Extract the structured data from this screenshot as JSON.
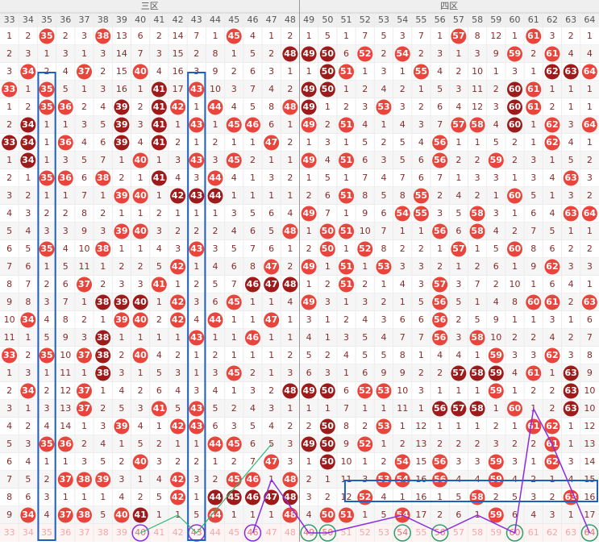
{
  "header": {
    "zones": [
      "三区",
      "四区"
    ],
    "columns": [
      33,
      34,
      35,
      36,
      37,
      38,
      39,
      40,
      41,
      42,
      43,
      44,
      45,
      46,
      47,
      48,
      49,
      50,
      51,
      52,
      53,
      54,
      55,
      56,
      57,
      58,
      59,
      60,
      61,
      62,
      63,
      64
    ]
  },
  "rows": [
    [
      1,
      2,
      {
        "v": 35,
        "c": "r"
      },
      2,
      3,
      {
        "v": 38,
        "c": "r"
      },
      13,
      6,
      2,
      14,
      7,
      1,
      {
        "v": 45,
        "c": "r"
      },
      4,
      1,
      2,
      1,
      5,
      1,
      7,
      5,
      3,
      7,
      1,
      {
        "v": 57,
        "c": "r"
      },
      8,
      12,
      1,
      {
        "v": 61,
        "c": "r"
      },
      3,
      2,
      1
    ],
    [
      2,
      3,
      1,
      3,
      1,
      3,
      14,
      7,
      3,
      15,
      2,
      8,
      1,
      5,
      2,
      {
        "v": 48,
        "c": "d"
      },
      {
        "v": 49,
        "c": "d"
      },
      {
        "v": 50,
        "c": "d"
      },
      6,
      {
        "v": 52,
        "c": "r"
      },
      2,
      {
        "v": 54,
        "c": "r"
      },
      2,
      3,
      1,
      3,
      9,
      {
        "v": 59,
        "c": "r"
      },
      2,
      {
        "v": 61,
        "c": "r"
      },
      4,
      4
    ],
    [
      3,
      {
        "v": 34,
        "c": "r"
      },
      2,
      4,
      {
        "v": 37,
        "c": "r"
      },
      2,
      15,
      {
        "v": 40,
        "c": "r"
      },
      4,
      16,
      3,
      9,
      2,
      6,
      3,
      1,
      1,
      {
        "v": 50,
        "c": "d"
      },
      {
        "v": 51,
        "c": "r"
      },
      1,
      3,
      1,
      {
        "v": 55,
        "c": "r"
      },
      4,
      2,
      10,
      1,
      3,
      1,
      {
        "v": 62,
        "c": "d"
      },
      {
        "v": 63,
        "c": "d"
      },
      {
        "v": 64,
        "c": "r"
      }
    ],
    [
      {
        "v": 33,
        "c": "r"
      },
      1,
      {
        "v": 35,
        "c": "r"
      },
      5,
      1,
      3,
      16,
      1,
      {
        "v": 41,
        "c": "d"
      },
      17,
      {
        "v": 43,
        "c": "r"
      },
      10,
      3,
      7,
      4,
      2,
      {
        "v": 49,
        "c": "d"
      },
      {
        "v": 50,
        "c": "d"
      },
      1,
      2,
      4,
      2,
      1,
      5,
      3,
      11,
      2,
      {
        "v": 60,
        "c": "d"
      },
      {
        "v": 61,
        "c": "r"
      },
      1,
      1,
      1
    ],
    [
      1,
      2,
      {
        "v": 35,
        "c": "r"
      },
      {
        "v": 36,
        "c": "r"
      },
      2,
      4,
      {
        "v": 39,
        "c": "d"
      },
      2,
      {
        "v": 41,
        "c": "d"
      },
      {
        "v": 42,
        "c": "r"
      },
      1,
      {
        "v": 44,
        "c": "r"
      },
      4,
      5,
      8,
      {
        "v": 48,
        "c": "r"
      },
      {
        "v": 49,
        "c": "d"
      },
      1,
      2,
      3,
      {
        "v": 53,
        "c": "r"
      },
      3,
      2,
      6,
      4,
      12,
      3,
      {
        "v": 60,
        "c": "d"
      },
      {
        "v": 61,
        "c": "r"
      },
      2,
      1,
      1
    ],
    [
      2,
      {
        "v": 34,
        "c": "d"
      },
      1,
      1,
      3,
      5,
      {
        "v": 39,
        "c": "d"
      },
      3,
      {
        "v": 41,
        "c": "d"
      },
      1,
      {
        "v": 43,
        "c": "r"
      },
      1,
      {
        "v": 45,
        "c": "r"
      },
      {
        "v": 46,
        "c": "r"
      },
      6,
      1,
      {
        "v": 49,
        "c": "r"
      },
      2,
      {
        "v": 51,
        "c": "r"
      },
      4,
      1,
      4,
      3,
      7,
      {
        "v": 57,
        "c": "r"
      },
      {
        "v": 58,
        "c": "r"
      },
      4,
      {
        "v": 60,
        "c": "d"
      },
      1,
      {
        "v": 62,
        "c": "r"
      },
      3,
      {
        "v": 64,
        "c": "r"
      }
    ],
    [
      {
        "v": 33,
        "c": "d"
      },
      {
        "v": 34,
        "c": "d"
      },
      1,
      {
        "v": 36,
        "c": "r"
      },
      4,
      6,
      {
        "v": 39,
        "c": "d"
      },
      4,
      {
        "v": 41,
        "c": "d"
      },
      2,
      1,
      2,
      1,
      1,
      {
        "v": 47,
        "c": "r"
      },
      2,
      1,
      3,
      1,
      5,
      2,
      5,
      4,
      {
        "v": 56,
        "c": "r"
      },
      1,
      1,
      5,
      2,
      1,
      {
        "v": 62,
        "c": "r"
      },
      4,
      1
    ],
    [
      1,
      {
        "v": 34,
        "c": "d"
      },
      1,
      3,
      5,
      7,
      1,
      {
        "v": 40,
        "c": "r"
      },
      1,
      3,
      {
        "v": 43,
        "c": "r"
      },
      3,
      {
        "v": 45,
        "c": "r"
      },
      2,
      1,
      1,
      {
        "v": 49,
        "c": "r"
      },
      4,
      {
        "v": 51,
        "c": "r"
      },
      6,
      3,
      5,
      6,
      {
        "v": 56,
        "c": "r"
      },
      2,
      2,
      {
        "v": 59,
        "c": "r"
      },
      2,
      3,
      1,
      5,
      2
    ],
    [
      2,
      1,
      {
        "v": 35,
        "c": "r"
      },
      {
        "v": 36,
        "c": "r"
      },
      6,
      {
        "v": 38,
        "c": "r"
      },
      2,
      1,
      {
        "v": 41,
        "c": "d"
      },
      4,
      3,
      {
        "v": 44,
        "c": "r"
      },
      4,
      1,
      3,
      2,
      1,
      5,
      1,
      7,
      4,
      7,
      6,
      7,
      1,
      3,
      3,
      1,
      3,
      4,
      {
        "v": 63,
        "c": "r"
      },
      3
    ],
    [
      3,
      2,
      1,
      1,
      7,
      1,
      {
        "v": 39,
        "c": "r"
      },
      {
        "v": 40,
        "c": "r"
      },
      1,
      {
        "v": 42,
        "c": "d"
      },
      {
        "v": 43,
        "c": "d"
      },
      {
        "v": 44,
        "c": "d"
      },
      1,
      1,
      1,
      1,
      2,
      6,
      {
        "v": 51,
        "c": "r"
      },
      8,
      5,
      8,
      {
        "v": 55,
        "c": "r"
      },
      2,
      4,
      2,
      1,
      {
        "v": 60,
        "c": "r"
      },
      5,
      1,
      3,
      2
    ],
    [
      4,
      3,
      2,
      2,
      8,
      2,
      1,
      1,
      2,
      1,
      1,
      1,
      3,
      5,
      6,
      4,
      {
        "v": 49,
        "c": "r"
      },
      7,
      1,
      9,
      6,
      {
        "v": 54,
        "c": "r"
      },
      {
        "v": 55,
        "c": "r"
      },
      3,
      5,
      {
        "v": 58,
        "c": "r"
      },
      3,
      1,
      6,
      4,
      {
        "v": 63,
        "c": "r"
      },
      {
        "v": 64,
        "c": "r"
      }
    ],
    [
      5,
      4,
      3,
      3,
      9,
      3,
      {
        "v": 39,
        "c": "r"
      },
      {
        "v": 40,
        "c": "r"
      },
      3,
      2,
      2,
      2,
      4,
      6,
      5,
      {
        "v": 48,
        "c": "r"
      },
      1,
      {
        "v": 50,
        "c": "r"
      },
      {
        "v": 51,
        "c": "r"
      },
      10,
      7,
      1,
      1,
      {
        "v": 56,
        "c": "r"
      },
      6,
      {
        "v": 58,
        "c": "r"
      },
      4,
      2,
      7,
      5,
      1,
      1
    ],
    [
      6,
      5,
      {
        "v": 35,
        "c": "r"
      },
      4,
      10,
      {
        "v": 38,
        "c": "r"
      },
      1,
      1,
      4,
      3,
      {
        "v": 43,
        "c": "r"
      },
      3,
      5,
      7,
      6,
      1,
      2,
      {
        "v": 50,
        "c": "r"
      },
      1,
      {
        "v": 52,
        "c": "r"
      },
      8,
      2,
      2,
      1,
      {
        "v": 57,
        "c": "r"
      },
      1,
      5,
      {
        "v": 60,
        "c": "r"
      },
      8,
      6,
      2,
      2
    ],
    [
      7,
      6,
      1,
      5,
      11,
      1,
      2,
      2,
      5,
      {
        "v": 42,
        "c": "r"
      },
      1,
      4,
      6,
      8,
      {
        "v": 47,
        "c": "r"
      },
      2,
      {
        "v": 49,
        "c": "r"
      },
      1,
      {
        "v": 51,
        "c": "r"
      },
      1,
      {
        "v": 53,
        "c": "r"
      },
      3,
      3,
      2,
      1,
      2,
      6,
      1,
      9,
      {
        "v": 62,
        "c": "r"
      },
      3,
      3
    ],
    [
      8,
      7,
      2,
      6,
      {
        "v": 37,
        "c": "r"
      },
      2,
      3,
      3,
      {
        "v": 41,
        "c": "r"
      },
      1,
      2,
      5,
      7,
      {
        "v": 46,
        "c": "d"
      },
      {
        "v": 47,
        "c": "d"
      },
      {
        "v": 48,
        "c": "d"
      },
      1,
      2,
      {
        "v": 51,
        "c": "r"
      },
      2,
      1,
      4,
      3,
      {
        "v": 57,
        "c": "r"
      },
      3,
      7,
      2,
      10,
      1,
      6,
      4,
      1
    ],
    [
      9,
      8,
      3,
      7,
      1,
      {
        "v": 38,
        "c": "d"
      },
      {
        "v": 39,
        "c": "d"
      },
      {
        "v": 40,
        "c": "d"
      },
      1,
      {
        "v": 42,
        "c": "r"
      },
      3,
      6,
      {
        "v": 45,
        "c": "r"
      },
      1,
      1,
      4,
      {
        "v": 49,
        "c": "r"
      },
      3,
      1,
      3,
      2,
      1,
      5,
      {
        "v": 56,
        "c": "r"
      },
      5,
      1,
      4,
      8,
      {
        "v": 60,
        "c": "r"
      },
      {
        "v": 61,
        "c": "r"
      },
      2,
      {
        "v": 63,
        "c": "r"
      }
    ],
    [
      10,
      {
        "v": 34,
        "c": "r"
      },
      4,
      8,
      2,
      1,
      {
        "v": 39,
        "c": "r"
      },
      {
        "v": 40,
        "c": "r"
      },
      2,
      {
        "v": 42,
        "c": "r"
      },
      4,
      {
        "v": 44,
        "c": "r"
      },
      1,
      1,
      {
        "v": 47,
        "c": "r"
      },
      1,
      3,
      1,
      2,
      4,
      3,
      6,
      6,
      {
        "v": 56,
        "c": "r"
      },
      2,
      5,
      9,
      1,
      1,
      3,
      1,
      6
    ],
    [
      11,
      1,
      5,
      9,
      3,
      {
        "v": 38,
        "c": "d"
      },
      1,
      1,
      1,
      1,
      {
        "v": 43,
        "c": "r"
      },
      1,
      1,
      {
        "v": 46,
        "c": "r"
      },
      1,
      1,
      4,
      1,
      3,
      5,
      4,
      7,
      7,
      {
        "v": 56,
        "c": "r"
      },
      3,
      {
        "v": 58,
        "c": "r"
      },
      10,
      2,
      2,
      4,
      2,
      7
    ],
    [
      {
        "v": 33,
        "c": "r"
      },
      2,
      {
        "v": 35,
        "c": "r"
      },
      10,
      {
        "v": 37,
        "c": "r"
      },
      {
        "v": 38,
        "c": "d"
      },
      2,
      {
        "v": 40,
        "c": "r"
      },
      4,
      2,
      1,
      2,
      1,
      1,
      1,
      2,
      5,
      2,
      4,
      5,
      5,
      8,
      1,
      4,
      4,
      1,
      {
        "v": 59,
        "c": "r"
      },
      3,
      3,
      {
        "v": 62,
        "c": "r"
      },
      3,
      8
    ],
    [
      1,
      3,
      1,
      11,
      1,
      {
        "v": 38,
        "c": "d"
      },
      3,
      1,
      5,
      3,
      1,
      3,
      {
        "v": 45,
        "c": "r"
      },
      2,
      1,
      3,
      6,
      3,
      1,
      6,
      9,
      9,
      2,
      2,
      {
        "v": 57,
        "c": "d"
      },
      {
        "v": 58,
        "c": "d"
      },
      {
        "v": 59,
        "c": "d"
      },
      4,
      {
        "v": 61,
        "c": "r"
      },
      1,
      {
        "v": 63,
        "c": "d"
      },
      9
    ],
    [
      2,
      {
        "v": 34,
        "c": "r"
      },
      2,
      12,
      {
        "v": 37,
        "c": "r"
      },
      1,
      4,
      2,
      6,
      4,
      3,
      4,
      1,
      3,
      2,
      {
        "v": 48,
        "c": "d"
      },
      {
        "v": 49,
        "c": "d"
      },
      {
        "v": 50,
        "c": "d"
      },
      6,
      {
        "v": 52,
        "c": "r"
      },
      {
        "v": 53,
        "c": "r"
      },
      10,
      3,
      1,
      1,
      1,
      {
        "v": 59,
        "c": "r"
      },
      1,
      2,
      2,
      {
        "v": 63,
        "c": "d"
      },
      10
    ],
    [
      3,
      1,
      3,
      13,
      {
        "v": 37,
        "c": "r"
      },
      2,
      5,
      3,
      {
        "v": 41,
        "c": "r"
      },
      5,
      {
        "v": 43,
        "c": "r"
      },
      5,
      2,
      4,
      3,
      1,
      1,
      1,
      7,
      1,
      1,
      11,
      1,
      {
        "v": 56,
        "c": "d"
      },
      {
        "v": 57,
        "c": "d"
      },
      {
        "v": 58,
        "c": "d"
      },
      1,
      {
        "v": 60,
        "c": "r"
      },
      1,
      2,
      {
        "v": 63,
        "c": "d"
      },
      10
    ],
    [
      4,
      2,
      4,
      14,
      1,
      3,
      {
        "v": 39,
        "c": "r"
      },
      4,
      1,
      {
        "v": 42,
        "c": "r"
      },
      {
        "v": 43,
        "c": "r"
      },
      6,
      3,
      5,
      4,
      2,
      2,
      {
        "v": 50,
        "c": "d"
      },
      8,
      2,
      {
        "v": 53,
        "c": "r"
      },
      1,
      12,
      1,
      1,
      1,
      2,
      1,
      {
        "v": 61,
        "c": "r"
      },
      {
        "v": 62,
        "c": "r"
      },
      1,
      12
    ],
    [
      5,
      3,
      {
        "v": 35,
        "c": "r"
      },
      {
        "v": 36,
        "c": "r"
      },
      2,
      4,
      1,
      5,
      2,
      1,
      1,
      {
        "v": 44,
        "c": "r"
      },
      {
        "v": 45,
        "c": "r"
      },
      6,
      5,
      3,
      {
        "v": 49,
        "c": "d"
      },
      {
        "v": 50,
        "c": "d"
      },
      9,
      {
        "v": 52,
        "c": "r"
      },
      1,
      2,
      13,
      2,
      2,
      2,
      3,
      2,
      2,
      {
        "v": 61,
        "c": "r"
      },
      1,
      13
    ],
    [
      6,
      4,
      1,
      1,
      3,
      5,
      2,
      {
        "v": 40,
        "c": "r"
      },
      3,
      2,
      2,
      1,
      2,
      7,
      {
        "v": 47,
        "c": "r"
      },
      3,
      1,
      {
        "v": 50,
        "c": "d"
      },
      10,
      1,
      2,
      {
        "v": 54,
        "c": "r"
      },
      15,
      {
        "v": 56,
        "c": "r"
      },
      3,
      3,
      {
        "v": 59,
        "c": "r"
      },
      3,
      1,
      {
        "v": 62,
        "c": "r"
      },
      3,
      14
    ],
    [
      7,
      5,
      2,
      {
        "v": 37,
        "c": "r"
      },
      {
        "v": 38,
        "c": "r"
      },
      {
        "v": 39,
        "c": "r"
      },
      3,
      1,
      4,
      {
        "v": 42,
        "c": "r"
      },
      3,
      2,
      {
        "v": 45,
        "c": "r"
      },
      {
        "v": 46,
        "c": "r"
      },
      1,
      {
        "v": 48,
        "c": "r"
      },
      2,
      1,
      11,
      3,
      {
        "v": 53,
        "c": "r"
      },
      {
        "v": 54,
        "c": "r"
      },
      16,
      {
        "v": 56,
        "c": "r"
      },
      4,
      4,
      {
        "v": 59,
        "c": "r"
      },
      4,
      2,
      1,
      4,
      15
    ],
    [
      8,
      6,
      3,
      1,
      1,
      1,
      4,
      2,
      5,
      {
        "v": 42,
        "c": "r"
      },
      1,
      {
        "v": 44,
        "c": "d"
      },
      {
        "v": 45,
        "c": "d"
      },
      {
        "v": 46,
        "c": "d"
      },
      {
        "v": 47,
        "c": "d"
      },
      {
        "v": 48,
        "c": "d"
      },
      3,
      2,
      12,
      {
        "v": 52,
        "c": "r"
      },
      4,
      1,
      16,
      1,
      5,
      {
        "v": 58,
        "c": "r"
      },
      2,
      5,
      3,
      2,
      {
        "v": 63,
        "c": "r"
      },
      16
    ],
    [
      9,
      {
        "v": 34,
        "c": "r"
      },
      4,
      {
        "v": 37,
        "c": "r"
      },
      {
        "v": 38,
        "c": "r"
      },
      5,
      {
        "v": 40,
        "c": "r"
      },
      {
        "v": 41,
        "c": "d"
      },
      1,
      1,
      5,
      {
        "v": 44,
        "c": "r"
      },
      1,
      1,
      1,
      {
        "v": 48,
        "c": "r"
      },
      4,
      {
        "v": 50,
        "c": "r"
      },
      {
        "v": 51,
        "c": "r"
      },
      1,
      5,
      {
        "v": 54,
        "c": "r"
      },
      17,
      2,
      6,
      1,
      {
        "v": 59,
        "c": "r"
      },
      6,
      4,
      3,
      1,
      17
    ]
  ],
  "footer": [
    33,
    34,
    35,
    36,
    37,
    38,
    39,
    {
      "v": 40,
      "c": "o"
    },
    41,
    42,
    {
      "v": 43,
      "c": "o"
    },
    44,
    45,
    {
      "v": 46,
      "c": "o"
    },
    47,
    48,
    {
      "v": 49,
      "c": "o"
    },
    {
      "v": 50,
      "c": "o"
    },
    51,
    52,
    53,
    {
      "v": 54,
      "c": "o"
    },
    55,
    {
      "v": 56,
      "c": "o"
    },
    57,
    58,
    59,
    {
      "v": 60,
      "c": "o"
    },
    61,
    62,
    63,
    {
      "v": 64,
      "c": "o"
    }
  ]
}
